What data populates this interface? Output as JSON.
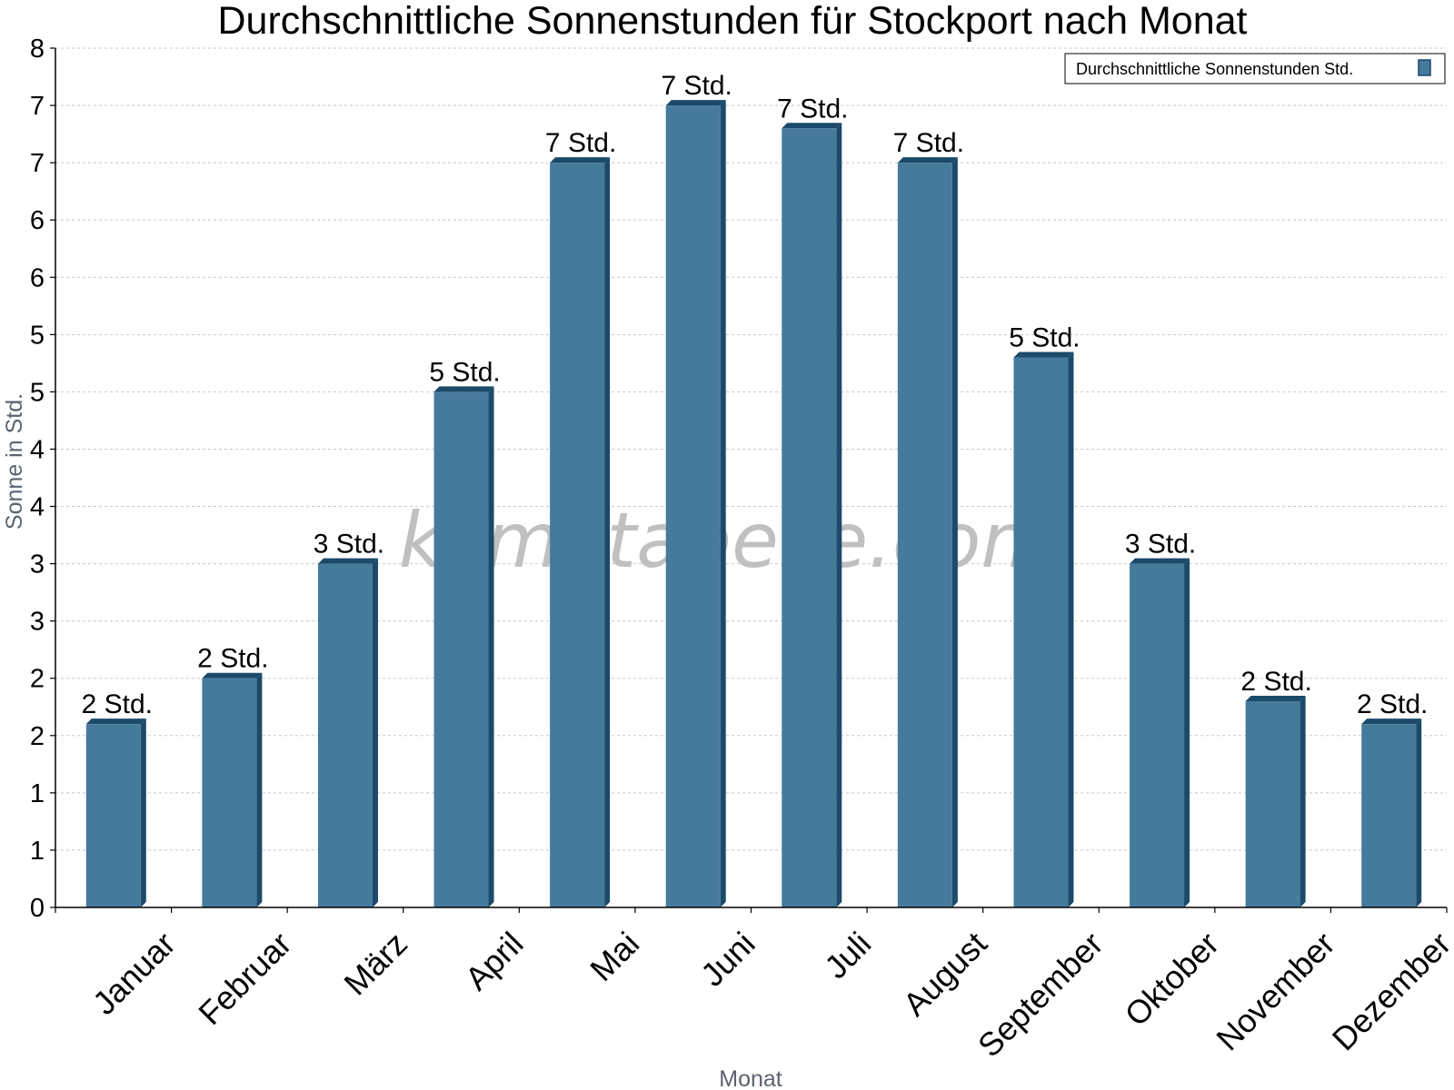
{
  "chart_data": {
    "type": "bar",
    "title": "Durchschnittliche Sonnenstunden für Stockport nach Monat",
    "xlabel": "Monat",
    "ylabel": "Sonne in Std.",
    "categories": [
      "Januar",
      "Februar",
      "März",
      "April",
      "Mai",
      "Juni",
      "Juli",
      "August",
      "September",
      "Oktober",
      "November",
      "Dezember"
    ],
    "series": [
      {
        "name": "Durchschnittliche Sonnenstunden Std.",
        "values": [
          1.6,
          2.0,
          3.0,
          4.5,
          6.5,
          7.0,
          6.8,
          6.5,
          4.8,
          3.0,
          1.8,
          1.6
        ],
        "labels": [
          "2 Std.",
          "2 Std.",
          "3 Std.",
          "5 Std.",
          "7 Std.",
          "7 Std.",
          "7 Std.",
          "7 Std.",
          "5 Std.",
          "3 Std.",
          "2 Std.",
          "2 Std."
        ]
      }
    ],
    "ylim": [
      0,
      7.5
    ],
    "yticks": [
      0,
      0.5,
      1,
      1.5,
      2,
      2.5,
      3,
      3.5,
      4,
      4.5,
      5,
      5.5,
      6,
      6.5,
      7,
      7.5
    ],
    "ytick_labels": [
      "0",
      "1",
      "1",
      "2",
      "2",
      "3",
      "3",
      "4",
      "4",
      "5",
      "5",
      "6",
      "6",
      "7",
      "7",
      "8"
    ],
    "grid": true,
    "legend_position": "top-right",
    "watermark": "klimatabelle.com",
    "colors": {
      "bar": "#467a9c",
      "bar_dark": "#1b4a6a",
      "grid": "#c8c8c8"
    }
  }
}
